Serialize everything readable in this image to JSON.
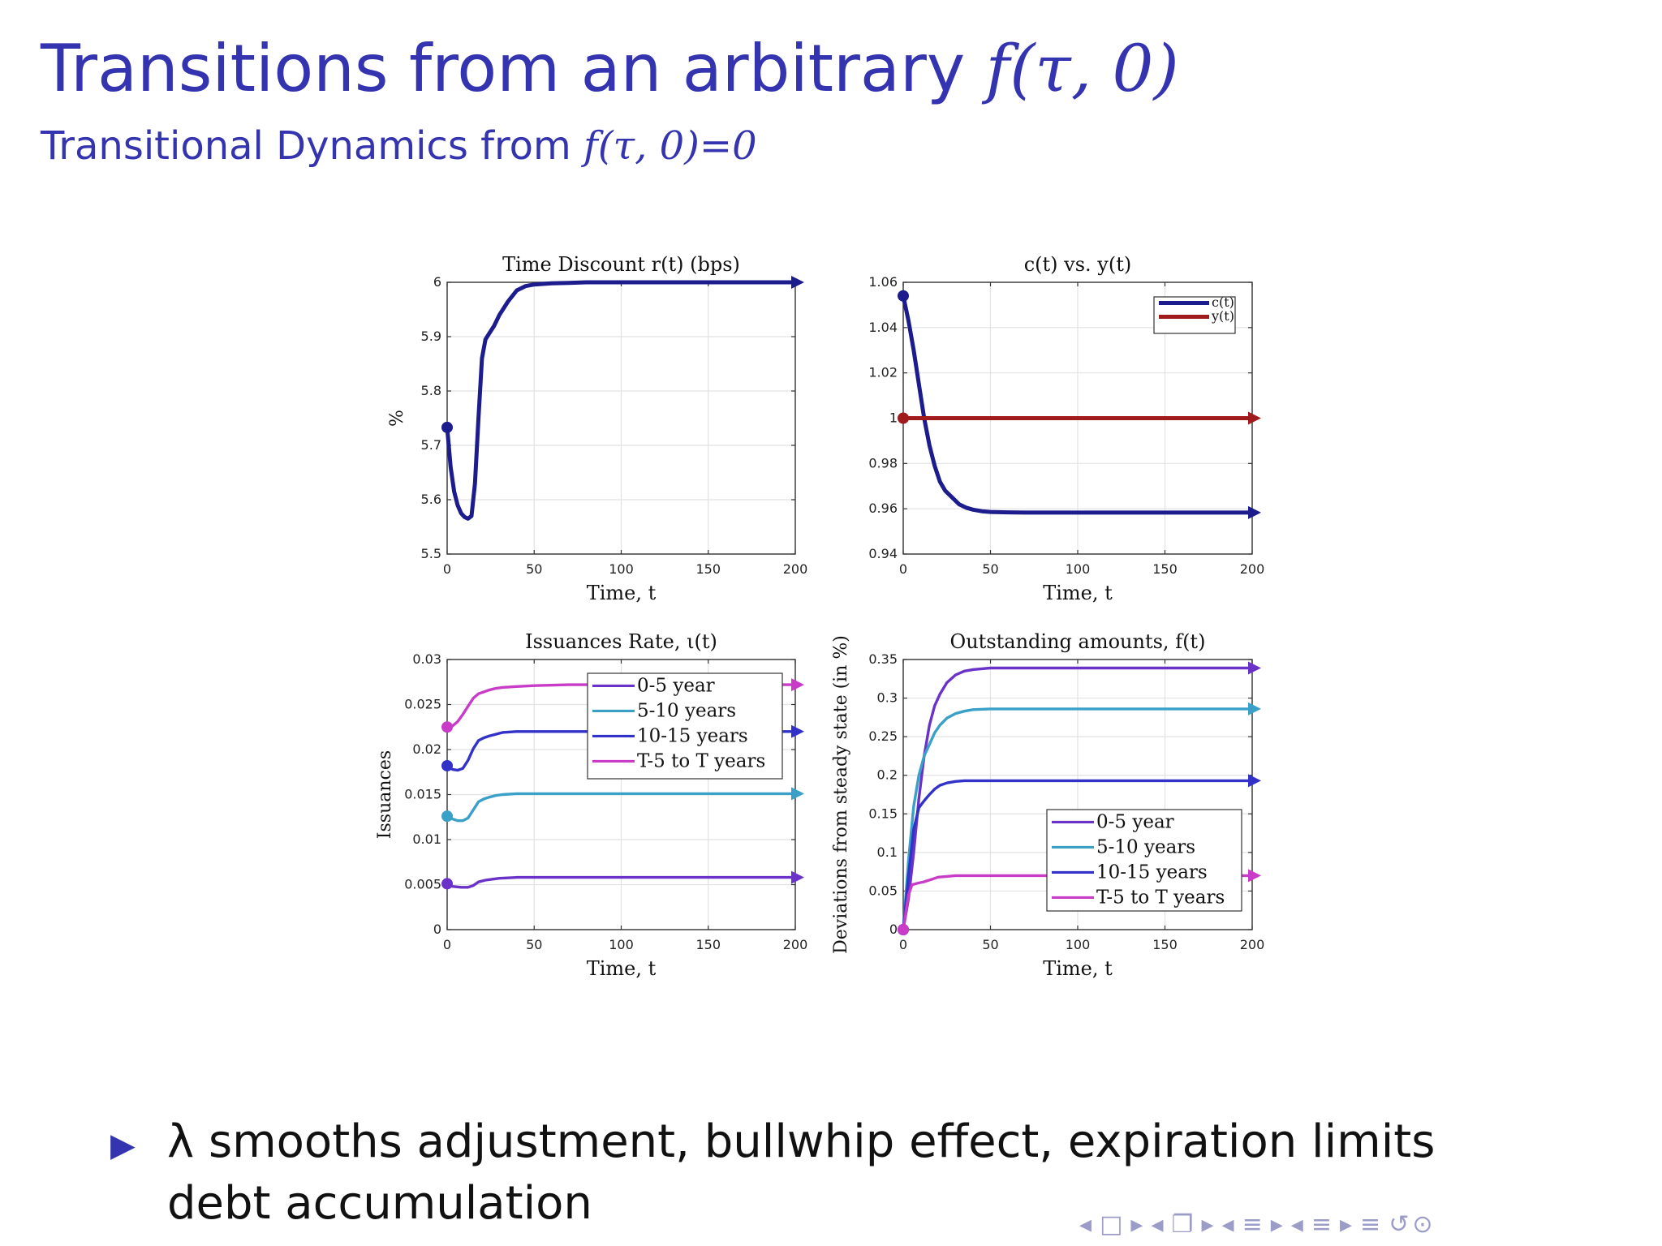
{
  "slide": {
    "title_prefix": "Transitions from an arbitrary ",
    "title_math": "f(τ, 0)",
    "subtitle_prefix": "Transitional Dynamics from ",
    "subtitle_math": "f(τ, 0)=0",
    "bullet_text": "λ smooths adjustment, bullwhip effect, expiration limits debt accumulation",
    "bullet_icon": "triangle-right-icon",
    "colors": {
      "title": "#3434b0",
      "bullet": "#3434b0",
      "nav": "#9c9cc8"
    }
  },
  "navigation": {
    "items": [
      {
        "icon": "prev-frame-icon",
        "glyph": "◂"
      },
      {
        "icon": "frame-icon",
        "glyph": "□"
      },
      {
        "icon": "next-frame-icon",
        "glyph": "▸"
      },
      {
        "icon": "prev-subsection-icon",
        "glyph": "◂"
      },
      {
        "icon": "subsection-icon",
        "glyph": "❐"
      },
      {
        "icon": "next-subsection-icon",
        "glyph": "▸"
      },
      {
        "icon": "prev-section-icon",
        "glyph": "◂"
      },
      {
        "icon": "section-icon",
        "glyph": "≡"
      },
      {
        "icon": "next-section-icon",
        "glyph": "▸"
      },
      {
        "icon": "prev-part-icon",
        "glyph": "◂"
      },
      {
        "icon": "part-icon",
        "glyph": "≡"
      },
      {
        "icon": "next-part-icon",
        "glyph": "▸"
      },
      {
        "icon": "toc-icon",
        "glyph": "≡"
      },
      {
        "icon": "search-icon",
        "glyph": "↺⊙"
      }
    ]
  },
  "chart_data": [
    {
      "type": "line",
      "title": "Time Discount r(t) (bps)",
      "xlabel": "Time, t",
      "ylabel": "%",
      "xlim": [
        0,
        200
      ],
      "ylim": [
        5.5,
        6.0
      ],
      "xticks": [
        0,
        50,
        100,
        150,
        200
      ],
      "yticks": [
        5.5,
        5.6,
        5.7,
        5.8,
        5.9,
        6
      ],
      "grid": true,
      "legend": "none",
      "series": [
        {
          "color": "#1c1c8c",
          "x": [
            0,
            2,
            4,
            6,
            8,
            10,
            12,
            14,
            16,
            18,
            20,
            22,
            24,
            27,
            30,
            35,
            40,
            45,
            50,
            60,
            70,
            80,
            100,
            150,
            200
          ],
          "y": [
            5.733,
            5.66,
            5.615,
            5.59,
            5.575,
            5.568,
            5.565,
            5.57,
            5.63,
            5.75,
            5.86,
            5.895,
            5.905,
            5.92,
            5.94,
            5.965,
            5.985,
            5.993,
            5.996,
            5.998,
            5.999,
            6.0,
            6.0,
            6.0,
            6.0
          ]
        }
      ]
    },
    {
      "type": "line",
      "title": "c(t) vs. y(t)",
      "xlabel": "Time, t",
      "ylabel": "",
      "xlim": [
        0,
        200
      ],
      "ylim": [
        0.94,
        1.06
      ],
      "xticks": [
        0,
        50,
        100,
        150,
        200
      ],
      "yticks": [
        0.94,
        0.96,
        0.98,
        1,
        1.02,
        1.04,
        1.06
      ],
      "grid": true,
      "legend": "top-right",
      "series": [
        {
          "name": "c(t)",
          "color": "#1c1c8c",
          "x": [
            0,
            3,
            6,
            9,
            12,
            15,
            18,
            21,
            24,
            28,
            32,
            36,
            40,
            45,
            50,
            60,
            70,
            80,
            100,
            150,
            200
          ],
          "y": [
            1.054,
            1.043,
            1.03,
            1.015,
            1.0,
            0.988,
            0.979,
            0.972,
            0.968,
            0.965,
            0.962,
            0.9605,
            0.9596,
            0.9589,
            0.9586,
            0.9584,
            0.9583,
            0.9583,
            0.9583,
            0.9583,
            0.9583
          ]
        },
        {
          "name": "y(t)",
          "color": "#a01c1c",
          "x": [
            0,
            200
          ],
          "y": [
            1.0,
            1.0
          ]
        }
      ]
    },
    {
      "type": "line",
      "title": "Issuances Rate, ι(t)",
      "xlabel": "Time, t",
      "ylabel": "Issuances",
      "xlim": [
        0,
        200
      ],
      "ylim": [
        0,
        0.03
      ],
      "xticks": [
        0,
        50,
        100,
        150,
        200
      ],
      "yticks": [
        0,
        0.005,
        0.01,
        0.015,
        0.02,
        0.025,
        0.03
      ],
      "grid": true,
      "legend": "top-right",
      "series": [
        {
          "name": "0-5 year",
          "color": "#6a32c8",
          "x": [
            0,
            3,
            8,
            12,
            15,
            18,
            22,
            26,
            30,
            40,
            50,
            70,
            100,
            150,
            200
          ],
          "y": [
            0.0051,
            0.0048,
            0.0047,
            0.0047,
            0.0049,
            0.0053,
            0.0055,
            0.0056,
            0.0057,
            0.0058,
            0.0058,
            0.0058,
            0.0058,
            0.0058,
            0.0058
          ]
        },
        {
          "name": "5-10 years",
          "color": "#3aa0c8",
          "x": [
            0,
            3,
            6,
            9,
            12,
            15,
            18,
            21,
            24,
            28,
            32,
            40,
            50,
            70,
            100,
            150,
            200
          ],
          "y": [
            0.0126,
            0.0123,
            0.0121,
            0.0121,
            0.0124,
            0.0133,
            0.0142,
            0.0145,
            0.0147,
            0.0149,
            0.015,
            0.0151,
            0.0151,
            0.0151,
            0.0151,
            0.0151,
            0.0151
          ]
        },
        {
          "name": "10-15 years",
          "color": "#3232c8",
          "x": [
            0,
            3,
            6,
            9,
            12,
            15,
            18,
            21,
            24,
            28,
            32,
            40,
            50,
            70,
            100,
            150,
            200
          ],
          "y": [
            0.0182,
            0.0178,
            0.0177,
            0.0179,
            0.0188,
            0.0201,
            0.021,
            0.0213,
            0.0215,
            0.0217,
            0.0219,
            0.022,
            0.022,
            0.022,
            0.022,
            0.022,
            0.022
          ]
        },
        {
          "name": "T-5 to T years",
          "color": "#c83cc8",
          "x": [
            0,
            3,
            6,
            9,
            12,
            15,
            18,
            21,
            24,
            28,
            32,
            40,
            50,
            70,
            100,
            150,
            200
          ],
          "y": [
            0.0225,
            0.0226,
            0.0231,
            0.0239,
            0.0248,
            0.0257,
            0.0262,
            0.0264,
            0.0266,
            0.0268,
            0.0269,
            0.027,
            0.0271,
            0.0272,
            0.0272,
            0.0272,
            0.0272
          ]
        }
      ]
    },
    {
      "type": "line",
      "title": "Outstanding amounts, f(t)",
      "xlabel": "Time, t",
      "ylabel": "Deviations from steady state (in %)",
      "xlim": [
        0,
        200
      ],
      "ylim": [
        0,
        0.35
      ],
      "xticks": [
        0,
        50,
        100,
        150,
        200
      ],
      "yticks": [
        0,
        0.05,
        0.1,
        0.15,
        0.2,
        0.25,
        0.3,
        0.35
      ],
      "grid": true,
      "legend": "bottom-right",
      "series": [
        {
          "name": "0-5 year",
          "color": "#6a32c8",
          "x": [
            0,
            3,
            6,
            9,
            12,
            15,
            18,
            21,
            25,
            30,
            35,
            40,
            45,
            50,
            60,
            70,
            100,
            150,
            200
          ],
          "y": [
            0,
            0.04,
            0.1,
            0.17,
            0.225,
            0.265,
            0.29,
            0.305,
            0.32,
            0.33,
            0.335,
            0.337,
            0.338,
            0.339,
            0.339,
            0.339,
            0.339,
            0.339,
            0.339
          ]
        },
        {
          "name": "5-10 years",
          "color": "#3aa0c8",
          "x": [
            0,
            3,
            6,
            9,
            12,
            15,
            18,
            21,
            25,
            30,
            35,
            40,
            50,
            60,
            70,
            100,
            150,
            200
          ],
          "y": [
            0,
            0.09,
            0.16,
            0.2,
            0.225,
            0.24,
            0.255,
            0.265,
            0.274,
            0.28,
            0.283,
            0.285,
            0.286,
            0.286,
            0.286,
            0.286,
            0.286,
            0.286
          ]
        },
        {
          "name": "10-15 years",
          "color": "#3232c8",
          "x": [
            0,
            3,
            6,
            9,
            12,
            15,
            18,
            21,
            25,
            30,
            35,
            40,
            50,
            70,
            100,
            150,
            200
          ],
          "y": [
            0,
            0.07,
            0.13,
            0.158,
            0.167,
            0.175,
            0.182,
            0.187,
            0.19,
            0.192,
            0.193,
            0.193,
            0.193,
            0.193,
            0.193,
            0.193,
            0.193
          ]
        },
        {
          "name": "T-5 to T years",
          "color": "#c83cc8",
          "x": [
            0,
            3,
            5,
            8,
            12,
            16,
            20,
            25,
            30,
            40,
            50,
            70,
            100,
            150,
            200
          ],
          "y": [
            0,
            0.045,
            0.058,
            0.06,
            0.062,
            0.065,
            0.068,
            0.069,
            0.07,
            0.07,
            0.07,
            0.07,
            0.07,
            0.07,
            0.07
          ]
        }
      ]
    }
  ]
}
